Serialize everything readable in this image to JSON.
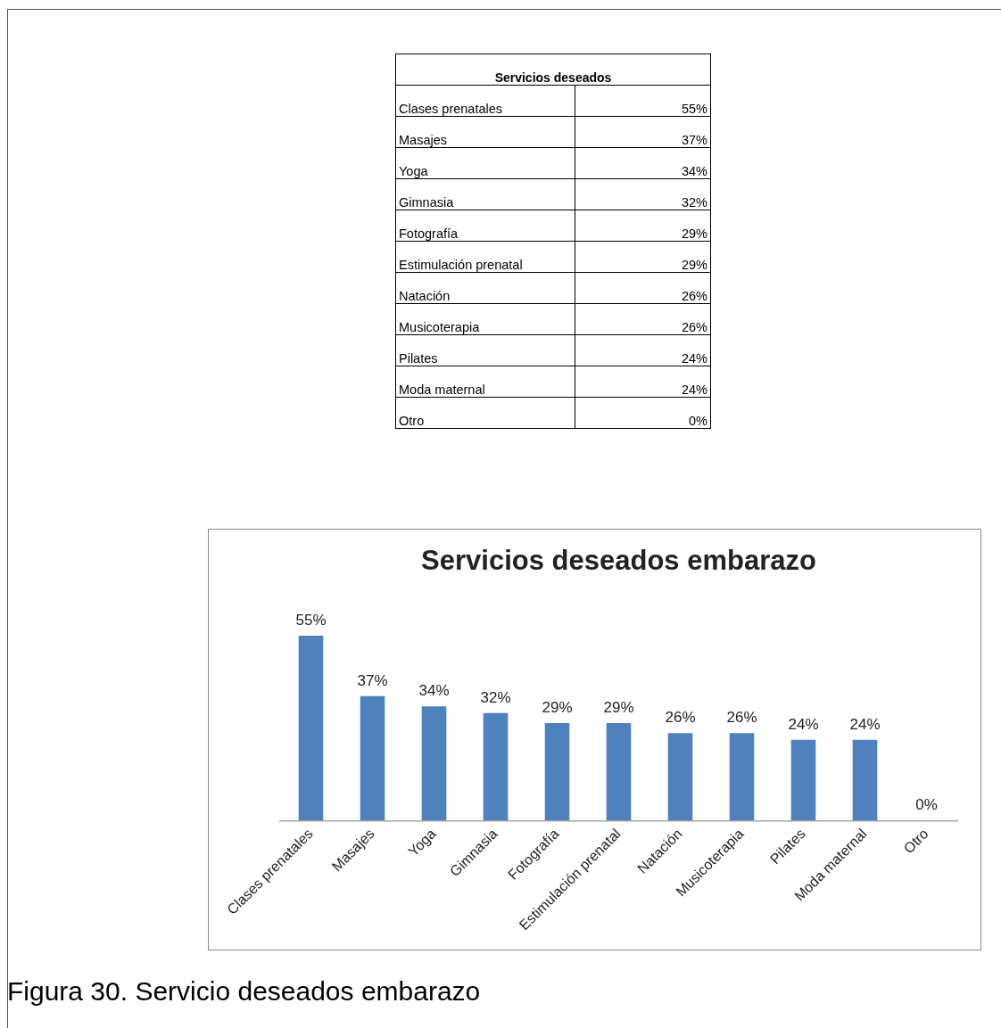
{
  "chart_data": {
    "type": "bar",
    "title": "Servicios deseados embarazo",
    "categories": [
      "Clases prenatales",
      "Masajes",
      "Yoga",
      "Gimnasia",
      "Fotografía",
      "Estimulación prenatal",
      "Natación",
      "Musicoterapia",
      "Pilates",
      "Moda maternal",
      "Otro"
    ],
    "values": [
      55,
      37,
      34,
      32,
      29,
      29,
      26,
      26,
      24,
      24,
      0
    ],
    "value_labels": [
      "55%",
      "37%",
      "34%",
      "32%",
      "29%",
      "29%",
      "26%",
      "26%",
      "24%",
      "24%",
      "0%"
    ],
    "color": "#4f81bd",
    "grid": false,
    "legend": false,
    "annotations": [
      "Servicios deseados",
      "Figura 30. Servicio deseados embarazo"
    ]
  }
}
